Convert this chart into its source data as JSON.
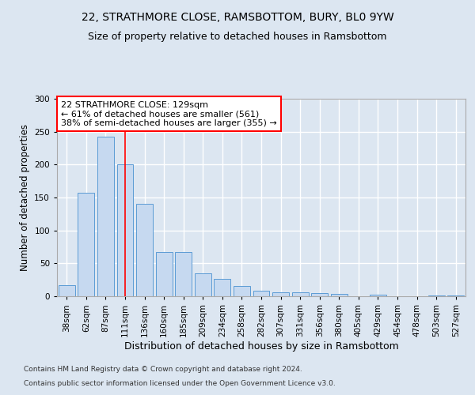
{
  "title1": "22, STRATHMORE CLOSE, RAMSBOTTOM, BURY, BL0 9YW",
  "title2": "Size of property relative to detached houses in Ramsbottom",
  "xlabel": "Distribution of detached houses by size in Ramsbottom",
  "ylabel": "Number of detached properties",
  "footer1": "Contains HM Land Registry data © Crown copyright and database right 2024.",
  "footer2": "Contains public sector information licensed under the Open Government Licence v3.0.",
  "categories": [
    "38sqm",
    "62sqm",
    "87sqm",
    "111sqm",
    "136sqm",
    "160sqm",
    "185sqm",
    "209sqm",
    "234sqm",
    "258sqm",
    "282sqm",
    "307sqm",
    "331sqm",
    "356sqm",
    "380sqm",
    "405sqm",
    "429sqm",
    "454sqm",
    "478sqm",
    "503sqm",
    "527sqm"
  ],
  "values": [
    17,
    157,
    243,
    200,
    140,
    67,
    67,
    35,
    27,
    16,
    9,
    6,
    6,
    5,
    4,
    0,
    2,
    0,
    0,
    1,
    1
  ],
  "bar_color": "#c6d9f0",
  "bar_edge_color": "#5b9bd5",
  "annotation_text": "22 STRATHMORE CLOSE: 129sqm\n← 61% of detached houses are smaller (561)\n38% of semi-detached houses are larger (355) →",
  "annotation_box_color": "white",
  "annotation_box_edge_color": "red",
  "vline_color": "red",
  "vline_x_index": 3,
  "ylim": [
    0,
    300
  ],
  "background_color": "#dce6f1",
  "plot_background_color": "#dce6f1",
  "grid_color": "white",
  "title_fontsize": 10,
  "subtitle_fontsize": 9,
  "tick_fontsize": 7.5,
  "ylabel_fontsize": 8.5,
  "xlabel_fontsize": 9
}
